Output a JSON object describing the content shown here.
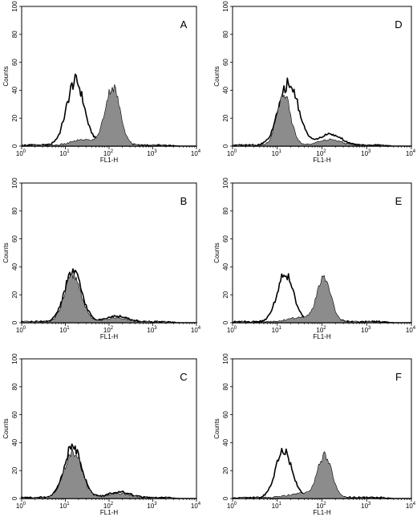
{
  "chart_data": [
    {
      "type": "area",
      "panel_label": "A",
      "xlabel": "FL1-H",
      "ylabel": "Counts",
      "xscale": "log",
      "xlim": [
        1,
        10000
      ],
      "ylim": [
        0,
        100
      ],
      "x_ticks": [
        {
          "base": "10",
          "exp": "0"
        },
        {
          "base": "10",
          "exp": "1"
        },
        {
          "base": "10",
          "exp": "2"
        },
        {
          "base": "10",
          "exp": "3"
        },
        {
          "base": "10",
          "exp": "4"
        }
      ],
      "y_ticks": [
        "0",
        "20",
        "40",
        "60",
        "80",
        "100"
      ],
      "grid": false,
      "series": [
        {
          "role": "outline",
          "fill": "#ffffff",
          "peaks": [
            {
              "x": 17,
              "h": 46,
              "w": 0.2
            },
            {
              "x": 110,
              "h": 4,
              "w": 0.25
            }
          ]
        },
        {
          "role": "filled",
          "fill": "#8c8c8c",
          "peaks": [
            {
              "x": 120,
              "h": 42,
              "w": 0.17
            },
            {
              "x": 25,
              "h": 4,
              "w": 0.25
            }
          ]
        }
      ]
    },
    {
      "type": "area",
      "panel_label": "B",
      "xlabel": "FL1-H",
      "ylabel": "Counts",
      "xscale": "log",
      "xlim": [
        1,
        10000
      ],
      "ylim": [
        0,
        100
      ],
      "x_ticks": [
        {
          "base": "10",
          "exp": "0"
        },
        {
          "base": "10",
          "exp": "1"
        },
        {
          "base": "10",
          "exp": "2"
        },
        {
          "base": "10",
          "exp": "3"
        },
        {
          "base": "10",
          "exp": "4"
        }
      ],
      "y_ticks": [
        "0",
        "20",
        "40",
        "60",
        "80",
        "100"
      ],
      "grid": false,
      "series": [
        {
          "role": "outline",
          "fill": "#ffffff",
          "peaks": [
            {
              "x": 15,
              "h": 36,
              "w": 0.2
            },
            {
              "x": 150,
              "h": 4,
              "w": 0.25
            }
          ]
        },
        {
          "role": "filled",
          "fill": "#8c8c8c",
          "peaks": [
            {
              "x": 15,
              "h": 33,
              "w": 0.19
            },
            {
              "x": 150,
              "h": 3,
              "w": 0.25
            }
          ]
        }
      ]
    },
    {
      "type": "area",
      "panel_label": "C",
      "xlabel": "FL1-H",
      "ylabel": "Counts",
      "xscale": "log",
      "xlim": [
        1,
        10000
      ],
      "ylim": [
        0,
        100
      ],
      "x_ticks": [
        {
          "base": "10",
          "exp": "0"
        },
        {
          "base": "10",
          "exp": "1"
        },
        {
          "base": "10",
          "exp": "2"
        },
        {
          "base": "10",
          "exp": "3"
        },
        {
          "base": "10",
          "exp": "4"
        }
      ],
      "y_ticks": [
        "0",
        "20",
        "40",
        "60",
        "80",
        "100"
      ],
      "grid": false,
      "series": [
        {
          "role": "outline",
          "fill": "#ffffff",
          "peaks": [
            {
              "x": 15,
              "h": 37,
              "w": 0.2
            },
            {
              "x": 170,
              "h": 4,
              "w": 0.25
            }
          ]
        },
        {
          "role": "filled",
          "fill": "#8c8c8c",
          "peaks": [
            {
              "x": 15,
              "h": 33,
              "w": 0.2
            },
            {
              "x": 170,
              "h": 3,
              "w": 0.25
            }
          ]
        }
      ]
    },
    {
      "type": "area",
      "panel_label": "D",
      "xlabel": "FL1-H",
      "ylabel": "Counts",
      "xscale": "log",
      "xlim": [
        1,
        10000
      ],
      "ylim": [
        0,
        100
      ],
      "x_ticks": [
        {
          "base": "10",
          "exp": "0"
        },
        {
          "base": "10",
          "exp": "1"
        },
        {
          "base": "10",
          "exp": "2"
        },
        {
          "base": "10",
          "exp": "3"
        },
        {
          "base": "10",
          "exp": "4"
        }
      ],
      "y_ticks": [
        "0",
        "20",
        "40",
        "60",
        "80",
        "100"
      ],
      "grid": false,
      "series": [
        {
          "role": "outline",
          "fill": "#ffffff",
          "peaks": [
            {
              "x": 18,
              "h": 44,
              "w": 0.22
            },
            {
              "x": 150,
              "h": 8,
              "w": 0.25
            }
          ]
        },
        {
          "role": "filled",
          "fill": "#8c8c8c",
          "peaks": [
            {
              "x": 14,
              "h": 37,
              "w": 0.15
            },
            {
              "x": 150,
              "h": 4,
              "w": 0.25
            }
          ]
        }
      ]
    },
    {
      "type": "area",
      "panel_label": "E",
      "xlabel": "FL1-H",
      "ylabel": "Counts",
      "xscale": "log",
      "xlim": [
        1,
        10000
      ],
      "ylim": [
        0,
        100
      ],
      "x_ticks": [
        {
          "base": "10",
          "exp": "0"
        },
        {
          "base": "10",
          "exp": "1"
        },
        {
          "base": "10",
          "exp": "2"
        },
        {
          "base": "10",
          "exp": "3"
        },
        {
          "base": "10",
          "exp": "4"
        }
      ],
      "y_ticks": [
        "0",
        "20",
        "40",
        "60",
        "80",
        "100"
      ],
      "grid": false,
      "series": [
        {
          "role": "outline",
          "fill": "#ffffff",
          "peaks": [
            {
              "x": 15,
              "h": 35,
              "w": 0.18
            },
            {
              "x": 100,
              "h": 4,
              "w": 0.25
            }
          ]
        },
        {
          "role": "filled",
          "fill": "#8c8c8c",
          "peaks": [
            {
              "x": 110,
              "h": 31,
              "w": 0.16
            },
            {
              "x": 30,
              "h": 3,
              "w": 0.25
            }
          ]
        }
      ]
    },
    {
      "type": "area",
      "panel_label": "F",
      "xlabel": "FL1-H",
      "ylabel": "Counts",
      "xscale": "log",
      "xlim": [
        1,
        10000
      ],
      "ylim": [
        0,
        100
      ],
      "x_ticks": [
        {
          "base": "10",
          "exp": "0"
        },
        {
          "base": "10",
          "exp": "1"
        },
        {
          "base": "10",
          "exp": "2"
        },
        {
          "base": "10",
          "exp": "3"
        },
        {
          "base": "10",
          "exp": "4"
        }
      ],
      "y_ticks": [
        "0",
        "20",
        "40",
        "60",
        "80",
        "100"
      ],
      "grid": false,
      "series": [
        {
          "role": "outline",
          "fill": "#ffffff",
          "peaks": [
            {
              "x": 14,
              "h": 34,
              "w": 0.18
            },
            {
              "x": 100,
              "h": 4,
              "w": 0.25
            }
          ]
        },
        {
          "role": "filled",
          "fill": "#8c8c8c",
          "peaks": [
            {
              "x": 115,
              "h": 30,
              "w": 0.16
            },
            {
              "x": 30,
              "h": 3,
              "w": 0.25
            }
          ]
        }
      ]
    }
  ]
}
